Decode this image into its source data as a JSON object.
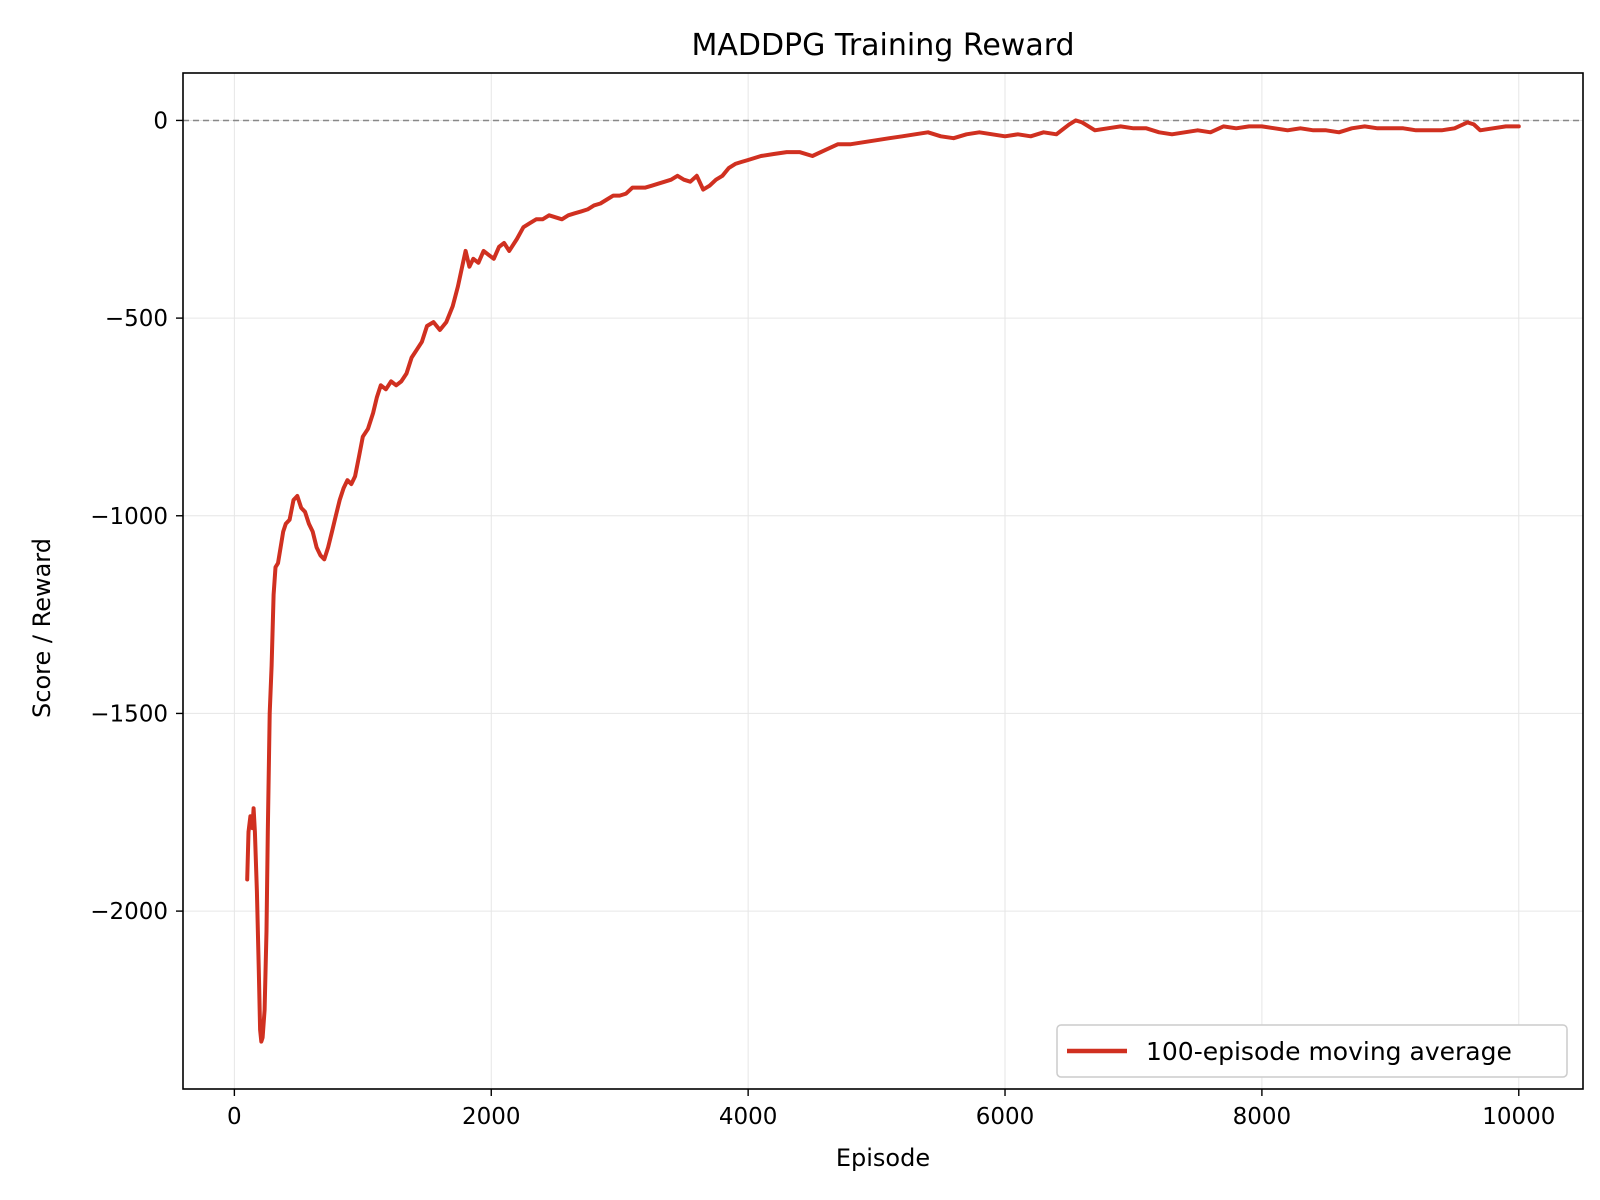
{
  "chart_data": {
    "type": "line",
    "title": "MADDPG Training Reward",
    "xlabel": "Episode",
    "ylabel": "Score / Reward",
    "xlim": [
      -400,
      10500
    ],
    "ylim": [
      -2450,
      120
    ],
    "xticks": [
      0,
      2000,
      4000,
      6000,
      8000,
      10000
    ],
    "yticks": [
      0,
      -500,
      -1000,
      -1500,
      -2000
    ],
    "grid": true,
    "legend_position": "lower-right",
    "reference_line": {
      "y": 0,
      "style": "dashed",
      "color": "#888888"
    },
    "colors": {
      "series": "#d03020"
    },
    "series": [
      {
        "name": "100-episode moving average",
        "points": [
          [
            100,
            -1920
          ],
          [
            110,
            -1800
          ],
          [
            125,
            -1760
          ],
          [
            140,
            -1790
          ],
          [
            150,
            -1740
          ],
          [
            160,
            -1800
          ],
          [
            175,
            -1950
          ],
          [
            190,
            -2150
          ],
          [
            200,
            -2300
          ],
          [
            210,
            -2330
          ],
          [
            220,
            -2320
          ],
          [
            235,
            -2250
          ],
          [
            250,
            -2050
          ],
          [
            260,
            -1800
          ],
          [
            275,
            -1500
          ],
          [
            290,
            -1380
          ],
          [
            305,
            -1200
          ],
          [
            320,
            -1130
          ],
          [
            340,
            -1120
          ],
          [
            360,
            -1080
          ],
          [
            380,
            -1040
          ],
          [
            400,
            -1020
          ],
          [
            430,
            -1010
          ],
          [
            460,
            -960
          ],
          [
            490,
            -950
          ],
          [
            520,
            -980
          ],
          [
            550,
            -990
          ],
          [
            580,
            -1020
          ],
          [
            610,
            -1040
          ],
          [
            640,
            -1080
          ],
          [
            670,
            -1100
          ],
          [
            700,
            -1110
          ],
          [
            730,
            -1080
          ],
          [
            760,
            -1040
          ],
          [
            790,
            -1000
          ],
          [
            820,
            -960
          ],
          [
            850,
            -930
          ],
          [
            880,
            -910
          ],
          [
            910,
            -920
          ],
          [
            940,
            -900
          ],
          [
            970,
            -850
          ],
          [
            1000,
            -800
          ],
          [
            1040,
            -780
          ],
          [
            1080,
            -740
          ],
          [
            1110,
            -700
          ],
          [
            1140,
            -670
          ],
          [
            1180,
            -680
          ],
          [
            1220,
            -660
          ],
          [
            1260,
            -670
          ],
          [
            1300,
            -660
          ],
          [
            1340,
            -640
          ],
          [
            1380,
            -600
          ],
          [
            1420,
            -580
          ],
          [
            1460,
            -560
          ],
          [
            1500,
            -520
          ],
          [
            1550,
            -510
          ],
          [
            1600,
            -530
          ],
          [
            1650,
            -510
          ],
          [
            1700,
            -470
          ],
          [
            1740,
            -420
          ],
          [
            1780,
            -360
          ],
          [
            1800,
            -330
          ],
          [
            1830,
            -370
          ],
          [
            1860,
            -350
          ],
          [
            1900,
            -360
          ],
          [
            1940,
            -330
          ],
          [
            1980,
            -340
          ],
          [
            2020,
            -350
          ],
          [
            2060,
            -320
          ],
          [
            2100,
            -310
          ],
          [
            2140,
            -330
          ],
          [
            2200,
            -300
          ],
          [
            2250,
            -270
          ],
          [
            2300,
            -260
          ],
          [
            2350,
            -250
          ],
          [
            2400,
            -250
          ],
          [
            2450,
            -240
          ],
          [
            2500,
            -245
          ],
          [
            2550,
            -250
          ],
          [
            2600,
            -240
          ],
          [
            2650,
            -235
          ],
          [
            2700,
            -230
          ],
          [
            2750,
            -225
          ],
          [
            2800,
            -215
          ],
          [
            2850,
            -210
          ],
          [
            2900,
            -200
          ],
          [
            2950,
            -190
          ],
          [
            3000,
            -190
          ],
          [
            3050,
            -185
          ],
          [
            3100,
            -170
          ],
          [
            3150,
            -170
          ],
          [
            3200,
            -170
          ],
          [
            3250,
            -165
          ],
          [
            3300,
            -160
          ],
          [
            3350,
            -155
          ],
          [
            3400,
            -150
          ],
          [
            3450,
            -140
          ],
          [
            3500,
            -150
          ],
          [
            3550,
            -155
          ],
          [
            3600,
            -140
          ],
          [
            3650,
            -175
          ],
          [
            3700,
            -165
          ],
          [
            3750,
            -150
          ],
          [
            3800,
            -140
          ],
          [
            3850,
            -120
          ],
          [
            3900,
            -110
          ],
          [
            3950,
            -105
          ],
          [
            4000,
            -100
          ],
          [
            4100,
            -90
          ],
          [
            4200,
            -85
          ],
          [
            4300,
            -80
          ],
          [
            4400,
            -80
          ],
          [
            4500,
            -90
          ],
          [
            4600,
            -75
          ],
          [
            4700,
            -60
          ],
          [
            4800,
            -60
          ],
          [
            4900,
            -55
          ],
          [
            5000,
            -50
          ],
          [
            5100,
            -45
          ],
          [
            5200,
            -40
          ],
          [
            5300,
            -35
          ],
          [
            5400,
            -30
          ],
          [
            5500,
            -40
          ],
          [
            5600,
            -45
          ],
          [
            5700,
            -35
          ],
          [
            5800,
            -30
          ],
          [
            5900,
            -35
          ],
          [
            6000,
            -40
          ],
          [
            6100,
            -35
          ],
          [
            6200,
            -40
          ],
          [
            6300,
            -30
          ],
          [
            6400,
            -35
          ],
          [
            6500,
            -10
          ],
          [
            6550,
            0
          ],
          [
            6600,
            -5
          ],
          [
            6700,
            -25
          ],
          [
            6800,
            -20
          ],
          [
            6900,
            -15
          ],
          [
            7000,
            -20
          ],
          [
            7100,
            -20
          ],
          [
            7200,
            -30
          ],
          [
            7300,
            -35
          ],
          [
            7400,
            -30
          ],
          [
            7500,
            -25
          ],
          [
            7600,
            -30
          ],
          [
            7700,
            -15
          ],
          [
            7800,
            -20
          ],
          [
            7900,
            -15
          ],
          [
            8000,
            -15
          ],
          [
            8100,
            -20
          ],
          [
            8200,
            -25
          ],
          [
            8300,
            -20
          ],
          [
            8400,
            -25
          ],
          [
            8500,
            -25
          ],
          [
            8600,
            -30
          ],
          [
            8700,
            -20
          ],
          [
            8800,
            -15
          ],
          [
            8900,
            -20
          ],
          [
            9000,
            -20
          ],
          [
            9100,
            -20
          ],
          [
            9200,
            -25
          ],
          [
            9300,
            -25
          ],
          [
            9400,
            -25
          ],
          [
            9500,
            -20
          ],
          [
            9600,
            -5
          ],
          [
            9650,
            -10
          ],
          [
            9700,
            -25
          ],
          [
            9800,
            -20
          ],
          [
            9900,
            -15
          ],
          [
            10000,
            -15
          ]
        ]
      }
    ]
  }
}
